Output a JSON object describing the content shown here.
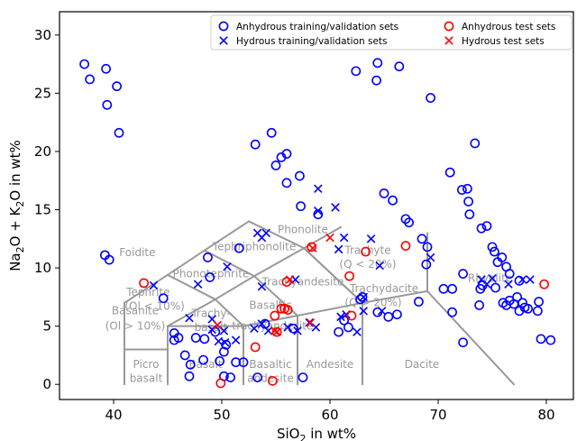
{
  "chart_data": {
    "type": "scatter",
    "xlabel": "SiO2 in wt%",
    "ylabel": "Na2O + K2O in wt%",
    "xlim": [
      35,
      82.5
    ],
    "ylim": [
      -1.3,
      32
    ],
    "xticks": [
      40,
      50,
      60,
      70,
      80
    ],
    "yticks": [
      0,
      5,
      10,
      15,
      20,
      25,
      30
    ],
    "grid": false,
    "legend_position": "top-right",
    "colors": {
      "training": "#0000ff",
      "test": "#ff0000",
      "field_lines": "#999999"
    },
    "legend": [
      {
        "label": "Anhydrous training/validation sets",
        "marker": "circle",
        "color": "#0000ff"
      },
      {
        "label": "Hydrous training/validation sets",
        "marker": "x",
        "color": "#0000ff"
      },
      {
        "label": "Anhydrous test sets",
        "marker": "circle",
        "color": "#ff0000"
      },
      {
        "label": "Hydrous test sets",
        "marker": "x",
        "color": "#ff0000"
      }
    ],
    "field_labels": [
      {
        "text": "Foidite",
        "x": 42.2,
        "y": 11
      },
      {
        "text": "Tephriphonolite",
        "x": 53.0,
        "y": 11.5
      },
      {
        "text": "Phonolite",
        "x": 57.5,
        "y": 13
      },
      {
        "text": "Phonotephrite",
        "x": 49.0,
        "y": 9.2
      },
      {
        "text": "Trachyandesite",
        "x": 57.5,
        "y": 8.5
      },
      {
        "text": "Tephrite",
        "x": 43.2,
        "y": 7.6
      },
      {
        "text": "(Ol < 10%)",
        "x": 43.8,
        "y": 6.4
      },
      {
        "text": "Basanite",
        "x": 42.0,
        "y": 6.0
      },
      {
        "text": "(Ol > 10%)",
        "x": 42.0,
        "y": 4.7
      },
      {
        "text": "Trachy-",
        "x": 49.0,
        "y": 5.8
      },
      {
        "text": "basalt",
        "x": 49.0,
        "y": 4.6
      },
      {
        "text": "Basaltic",
        "x": 54.5,
        "y": 6.5
      },
      {
        "text": "trachyandesite",
        "x": 54.7,
        "y": 4.7
      },
      {
        "text": "Trachyte",
        "x": 63.5,
        "y": 11.2
      },
      {
        "text": "(Q < 20%)",
        "x": 63.5,
        "y": 10.0
      },
      {
        "text": "Trachydacite",
        "x": 65.0,
        "y": 7.9
      },
      {
        "text": "(Q > 20%)",
        "x": 64.0,
        "y": 6.7
      },
      {
        "text": "Rhyolite",
        "x": 74.8,
        "y": 8.8
      },
      {
        "text": "Picro",
        "x": 43.0,
        "y": 1.4
      },
      {
        "text": "basalt",
        "x": 43.0,
        "y": 0.2
      },
      {
        "text": "Basalt",
        "x": 48.5,
        "y": 1.4
      },
      {
        "text": "Basaltic",
        "x": 54.5,
        "y": 1.4
      },
      {
        "text": "andesite",
        "x": 54.5,
        "y": 0.2
      },
      {
        "text": "Andesite",
        "x": 60.0,
        "y": 1.4
      },
      {
        "text": "Dacite",
        "x": 68.5,
        "y": 1.4
      }
    ],
    "series": [
      {
        "name": "Anhydrous training/validation sets",
        "marker": "circle",
        "points": [
          [
            37.3,
            27.5
          ],
          [
            37.8,
            26.2
          ],
          [
            39.3,
            27.1
          ],
          [
            39.4,
            24
          ],
          [
            40.3,
            25.6
          ],
          [
            40.5,
            21.6
          ],
          [
            39.2,
            11.1
          ],
          [
            39.6,
            10.7
          ],
          [
            53.1,
            20.6
          ],
          [
            54.6,
            21.6
          ],
          [
            55.5,
            19.5
          ],
          [
            55.0,
            18.8
          ],
          [
            56.0,
            19.8
          ],
          [
            56.0,
            17.3
          ],
          [
            57.2,
            17.9
          ],
          [
            57.3,
            15.3
          ],
          [
            58.9,
            14.6
          ],
          [
            62.4,
            26.9
          ],
          [
            64.3,
            26.1
          ],
          [
            64.4,
            27.6
          ],
          [
            66.4,
            27.3
          ],
          [
            69.3,
            24.6
          ],
          [
            73.4,
            20.7
          ],
          [
            71.1,
            18.2
          ],
          [
            72.2,
            16.7
          ],
          [
            72.7,
            16.8
          ],
          [
            72.8,
            15.7
          ],
          [
            72.9,
            14.6
          ],
          [
            74.0,
            13.4
          ],
          [
            74.5,
            13.6
          ],
          [
            65.0,
            16.4
          ],
          [
            65.8,
            15.8
          ],
          [
            67.0,
            14.2
          ],
          [
            67.3,
            13.9
          ],
          [
            68.5,
            12.5
          ],
          [
            69.0,
            11.8
          ],
          [
            68.9,
            10.3
          ],
          [
            70.5,
            8.2
          ],
          [
            71.3,
            8.2
          ],
          [
            72.3,
            9.5
          ],
          [
            75.0,
            11.8
          ],
          [
            75.2,
            11.4
          ],
          [
            75.5,
            10.5
          ],
          [
            75.9,
            10.9
          ],
          [
            76.3,
            10.1
          ],
          [
            76.6,
            9.5
          ],
          [
            77.5,
            8.9
          ],
          [
            73.9,
            8.2
          ],
          [
            74.1,
            8.5
          ],
          [
            75.3,
            8.3
          ],
          [
            76.0,
            7.0
          ],
          [
            76.3,
            6.8
          ],
          [
            76.6,
            7.2
          ],
          [
            77.0,
            6.9
          ],
          [
            77.3,
            7.5
          ],
          [
            77.5,
            6.3
          ],
          [
            77.8,
            7.0
          ],
          [
            78.0,
            6.6
          ],
          [
            78.3,
            6.5
          ],
          [
            79.3,
            7.1
          ],
          [
            79.2,
            6.3
          ],
          [
            79.5,
            3.9
          ],
          [
            80.4,
            3.8
          ],
          [
            71.3,
            6.2
          ],
          [
            72.3,
            3.6
          ],
          [
            73.8,
            6.8
          ],
          [
            62.8,
            7.3
          ],
          [
            63.0,
            7.5
          ],
          [
            64.4,
            6.2
          ],
          [
            65.4,
            5.8
          ],
          [
            66.2,
            6.0
          ],
          [
            68.2,
            7.1
          ],
          [
            60.8,
            4.5
          ],
          [
            61.3,
            5.5
          ],
          [
            61.7,
            4.9
          ],
          [
            57.5,
            0.6
          ],
          [
            53.3,
            0.6
          ],
          [
            50.2,
            0.7
          ],
          [
            50.8,
            0.6
          ],
          [
            49.8,
            2.0
          ],
          [
            48.3,
            2.1
          ],
          [
            47.1,
            1.7
          ],
          [
            46.6,
            2.5
          ],
          [
            47.0,
            0.7
          ],
          [
            48.4,
            3.9
          ],
          [
            49.4,
            4.5
          ],
          [
            50.4,
            3.4
          ],
          [
            50.2,
            2.8
          ],
          [
            46.0,
            4.0
          ],
          [
            47.6,
            4.0
          ],
          [
            51.6,
            11.7
          ],
          [
            48.7,
            10.9
          ],
          [
            44.6,
            7.4
          ],
          [
            45.6,
            4.4
          ],
          [
            45.6,
            3.8
          ],
          [
            48.9,
            9.2
          ],
          [
            56.6,
            4.8
          ],
          [
            54.0,
            5.2
          ],
          [
            51.3,
            1.9
          ],
          [
            52.0,
            1.9
          ]
        ]
      },
      {
        "name": "Hydrous training/validation sets",
        "marker": "x",
        "points": [
          [
            58.9,
            16.8
          ],
          [
            60.5,
            15.2
          ],
          [
            58.9,
            14.9
          ],
          [
            53.3,
            13.0
          ],
          [
            53.7,
            12.6
          ],
          [
            54.1,
            13.0
          ],
          [
            61.3,
            12.6
          ],
          [
            63.8,
            12.5
          ],
          [
            60.8,
            11.6
          ],
          [
            69.3,
            10.9
          ],
          [
            64.6,
            10.2
          ],
          [
            56.8,
            9.0
          ],
          [
            53.7,
            8.4
          ],
          [
            47.8,
            8.6
          ],
          [
            43.7,
            8.5
          ],
          [
            74.0,
            9.0
          ],
          [
            74.5,
            8.6
          ],
          [
            75.0,
            9.1
          ],
          [
            76.5,
            8.6
          ],
          [
            77.8,
            9.0
          ],
          [
            78.5,
            9.0
          ],
          [
            53.0,
            4.8
          ],
          [
            53.7,
            5.2
          ],
          [
            54.3,
            4.6
          ],
          [
            57.0,
            4.6
          ],
          [
            61.0,
            5.8
          ],
          [
            61.5,
            6.0
          ],
          [
            62.5,
            4.5
          ],
          [
            63.1,
            6.3
          ],
          [
            64.8,
            6.3
          ],
          [
            63.1,
            7.5
          ],
          [
            47.0,
            5.7
          ],
          [
            49.1,
            5.6
          ],
          [
            50.2,
            4.6
          ],
          [
            49.1,
            4.7
          ],
          [
            51.3,
            3.8
          ],
          [
            49.7,
            3.7
          ],
          [
            50.3,
            3.6
          ],
          [
            58.7,
            4.9
          ],
          [
            56.1,
            4.9
          ],
          [
            58.1,
            5.3
          ],
          [
            50.5,
            10.1
          ]
        ]
      },
      {
        "name": "Anhydrous test sets",
        "marker": "circle",
        "points": [
          [
            42.8,
            8.7
          ],
          [
            56.1,
            6.4
          ],
          [
            54.9,
            5.9
          ],
          [
            55.5,
            6.5
          ],
          [
            55.8,
            6.5
          ],
          [
            55.1,
            4.5
          ],
          [
            54.7,
            0.3
          ],
          [
            53.1,
            3.2
          ],
          [
            49.9,
            0.1
          ],
          [
            56.0,
            8.8
          ],
          [
            58.3,
            11.8
          ],
          [
            61.8,
            9.3
          ],
          [
            63.3,
            11.4
          ],
          [
            67.0,
            11.9
          ],
          [
            62.0,
            5.9
          ],
          [
            79.8,
            8.6
          ]
        ]
      },
      {
        "name": "Hydrous test sets",
        "marker": "x",
        "points": [
          [
            56.3,
            9.0
          ],
          [
            58.4,
            11.7
          ],
          [
            60.0,
            12.6
          ],
          [
            58.2,
            5.3
          ],
          [
            54.9,
            4.6
          ],
          [
            49.6,
            5.1
          ],
          [
            55.1,
            4.5
          ]
        ]
      }
    ],
    "tas_lines": [
      [
        [
          41,
          0
        ],
        [
          41,
          7
        ]
      ],
      [
        [
          41,
          7
        ],
        [
          45,
          9.4
        ]
      ],
      [
        [
          45,
          9.4
        ],
        [
          48.4,
          11.5
        ]
      ],
      [
        [
          48.4,
          11.5
        ],
        [
          52.5,
          14
        ]
      ],
      [
        [
          52.5,
          14
        ],
        [
          57.6,
          11.7
        ]
      ],
      [
        [
          57.6,
          11.7
        ],
        [
          63,
          7
        ]
      ],
      [
        [
          41,
          3
        ],
        [
          45,
          3
        ]
      ],
      [
        [
          45,
          0
        ],
        [
          45,
          5
        ]
      ],
      [
        [
          45,
          5
        ],
        [
          49.4,
          7.3
        ]
      ],
      [
        [
          49.4,
          7.3
        ],
        [
          53,
          9.3
        ]
      ],
      [
        [
          53,
          9.3
        ],
        [
          57.6,
          11.7
        ]
      ],
      [
        [
          57.6,
          11.7
        ],
        [
          61,
          13.5
        ]
      ],
      [
        [
          45,
          5
        ],
        [
          52,
          5
        ]
      ],
      [
        [
          52,
          0
        ],
        [
          52,
          5
        ]
      ],
      [
        [
          52,
          5
        ],
        [
          57,
          5.9
        ]
      ],
      [
        [
          57,
          5.9
        ],
        [
          63,
          7
        ]
      ],
      [
        [
          63,
          7
        ],
        [
          69,
          8
        ]
      ],
      [
        [
          57,
          0
        ],
        [
          57,
          5.9
        ]
      ],
      [
        [
          63,
          0
        ],
        [
          63,
          7
        ]
      ],
      [
        [
          52,
          5
        ],
        [
          49.4,
          7.3
        ]
      ],
      [
        [
          49.4,
          7.3
        ],
        [
          45,
          9.4
        ]
      ],
      [
        [
          57,
          5.9
        ],
        [
          53,
          9.3
        ]
      ],
      [
        [
          53,
          9.3
        ],
        [
          48.4,
          11.5
        ]
      ],
      [
        [
          63,
          7
        ],
        [
          57.6,
          11.7
        ]
      ],
      [
        [
          69,
          8
        ],
        [
          69,
          13
        ]
      ],
      [
        [
          69,
          8
        ],
        [
          77,
          0
        ]
      ]
    ]
  }
}
